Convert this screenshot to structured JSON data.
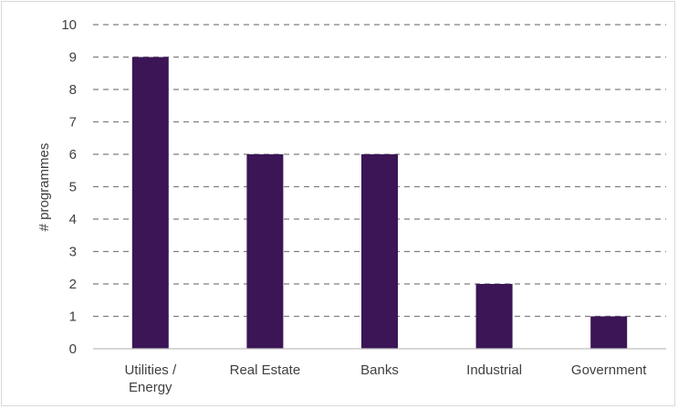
{
  "chart_data": {
    "type": "bar",
    "title": "",
    "xlabel": "",
    "ylabel": "# programmes",
    "categories": [
      [
        "Utilities /",
        "Energy"
      ],
      [
        "Real Estate"
      ],
      [
        "Banks"
      ],
      [
        "Industrial"
      ],
      [
        "Government"
      ]
    ],
    "values": [
      9,
      6,
      6,
      2,
      1
    ],
    "ylim": [
      0,
      10
    ],
    "yticks": [
      0,
      1,
      2,
      3,
      4,
      5,
      6,
      7,
      8,
      9,
      10
    ],
    "grid": true,
    "grid_style": "dashed",
    "legend": "none",
    "colors": {
      "bar": "#3b1556",
      "grid": "#7f7f7f",
      "axis": "#bfbfbf",
      "text": "#404040",
      "frame": "#d9d9d9"
    }
  }
}
